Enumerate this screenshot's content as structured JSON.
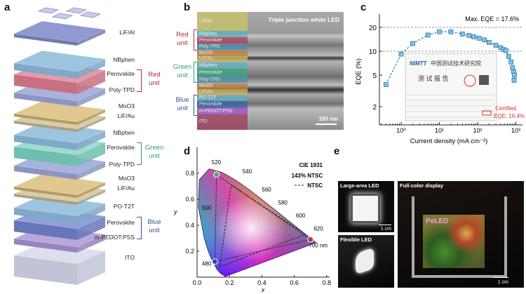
{
  "panels": {
    "a": "a",
    "b": "b",
    "c": "c",
    "d": "d",
    "e": "e"
  },
  "panel_a": {
    "layers": [
      "LiF/Al",
      "NBphen",
      "Perovskite",
      "Poly-TPD",
      "MoO3",
      "LiF/Au",
      "NBphen",
      "Perovskite",
      "Poly-TPD",
      "MoO3",
      "LiF/Au",
      "PO-T2T",
      "Perovskite",
      "m-PEDOT:PSS",
      "ITO"
    ],
    "units": {
      "red": "Red unit",
      "green": "Green unit",
      "blue": "Blue unit"
    },
    "unit_colors": {
      "red": "#b22a3c",
      "green": "#2a9c7c",
      "blue": "#35508c"
    }
  },
  "panel_b": {
    "title": "Triple junction white LED",
    "bands": [
      "LiF/Al",
      "NBphen",
      "Perovskite",
      "Poly-TPD",
      "MoO3",
      "LiF/Au",
      "NBphen",
      "Perovskite",
      "Poly-TPD",
      "MoO3",
      "LiF/Au",
      "PO-T2T",
      "Perovskite",
      "m-PEDOT:PSS",
      "ITO"
    ],
    "units": {
      "red": "Red unit",
      "green": "Green unit",
      "blue": "Blue unit"
    },
    "scale_bar": "100 nm"
  },
  "chart_data": [
    {
      "type": "scatter",
      "title": "",
      "annotation": "Max. EQE = 17.6%",
      "certified": "Certified EQE: 16.4%",
      "xlabel": "Current density (mA cm⁻²)",
      "ylabel": "EQE (%)",
      "xscale": "log",
      "yscale": "log",
      "xlim": [
        0.3,
        1200
      ],
      "ylim": [
        1.3,
        32
      ],
      "xticks": [
        "10⁰",
        "10¹",
        "10²",
        "10³"
      ],
      "yticks": [
        2,
        5,
        10,
        20
      ],
      "hlines": [
        10,
        20
      ],
      "x": [
        0.4,
        1,
        2,
        5,
        10,
        20,
        40,
        60,
        80,
        110,
        150,
        200,
        300,
        400,
        480,
        550,
        650,
        750,
        820,
        880,
        920,
        900
      ],
      "y": [
        3.8,
        9.2,
        12.5,
        16,
        17.6,
        17.6,
        16.5,
        15.8,
        15.2,
        14.6,
        13.9,
        12.9,
        11.9,
        11.1,
        10.5,
        10.2,
        8.6,
        7.3,
        6.2,
        5.5,
        5.0,
        4.3
      ],
      "inset_report": {
        "institute_cn": "中国测试技术研究院",
        "report_cn": "测 试 报 告",
        "logo": "NIMTT"
      }
    },
    {
      "type": "scatter",
      "title": "CIE 1931",
      "legend": [
        "143% NTSC",
        "NTSC"
      ],
      "xlabel": "x",
      "ylabel": "y",
      "xlim": [
        0,
        0.8
      ],
      "ylim": [
        0,
        0.9
      ],
      "xticks": [
        "0.0",
        "0.2",
        "0.4",
        "0.6",
        "0.8"
      ],
      "yticks": [
        "0.2",
        "0.4",
        "0.6",
        "0.8"
      ],
      "wavelength_labels": [
        "480",
        "500",
        "520",
        "540",
        "560",
        "580",
        "600",
        "620",
        "700 nm"
      ],
      "device_points": [
        {
          "x": 0.12,
          "y": 0.79,
          "color": "#5aa07a"
        },
        {
          "x": 0.7,
          "y": 0.29,
          "color": "#c0394a"
        },
        {
          "x": 0.11,
          "y": 0.12,
          "color": "#2a4a8c"
        }
      ],
      "ntsc_points": [
        {
          "x": 0.21,
          "y": 0.71
        },
        {
          "x": 0.67,
          "y": 0.33
        },
        {
          "x": 0.14,
          "y": 0.08
        }
      ]
    }
  ],
  "panel_e": {
    "large": "Large-area LED",
    "flexible": "Flexible LED",
    "display": "Full-color display",
    "display_text": "PeLED",
    "scale": "1 cm"
  }
}
